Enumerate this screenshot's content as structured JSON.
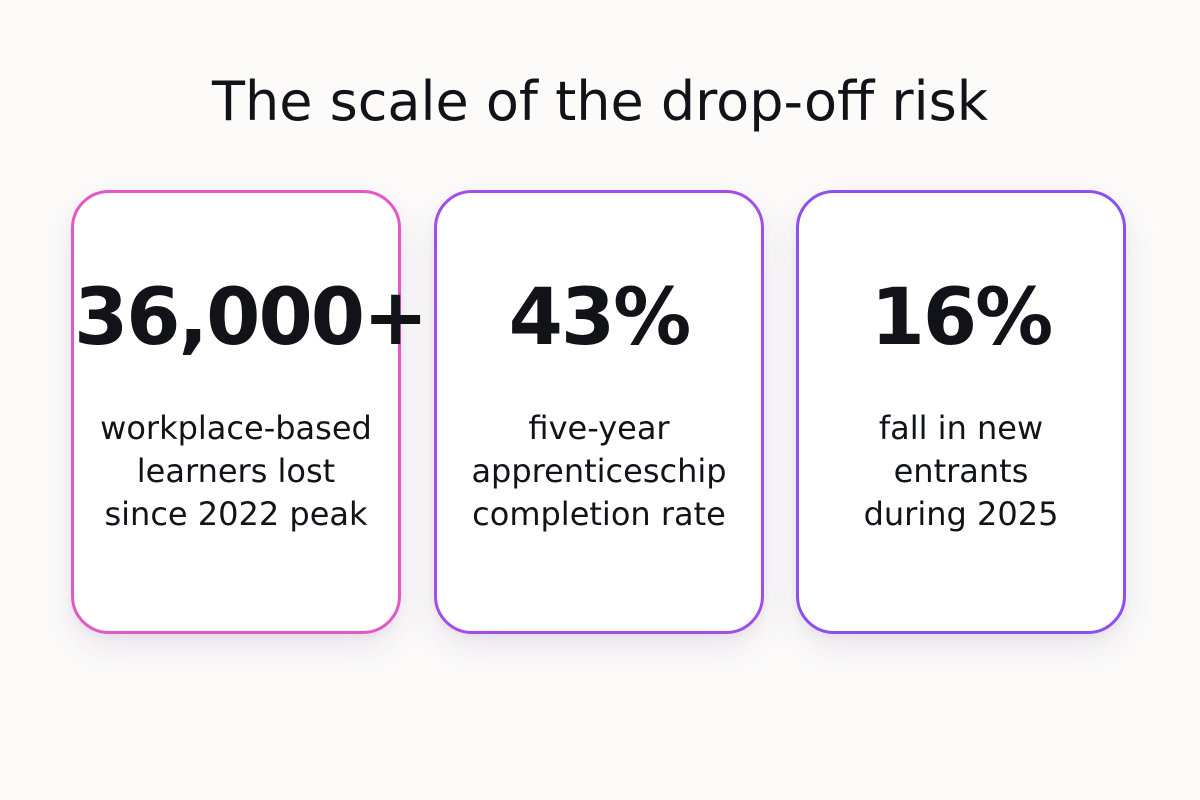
{
  "title": "The scale of the drop-off risk",
  "colors": {
    "background": "#fcfbfa",
    "text": "#111318",
    "card_border_gradient": [
      "#e458c6",
      "#a44ee8",
      "#8d4ff0"
    ]
  },
  "cards": [
    {
      "stat": "36,000+",
      "description_lines": [
        "workplace-based",
        "learners lost",
        "since 2022 peak"
      ]
    },
    {
      "stat": "43%",
      "description_lines": [
        "five-year",
        "apprenticeschip",
        "completion rate"
      ]
    },
    {
      "stat": "16%",
      "description_lines": [
        "fall in new",
        "entrants",
        "during 2025"
      ]
    }
  ]
}
